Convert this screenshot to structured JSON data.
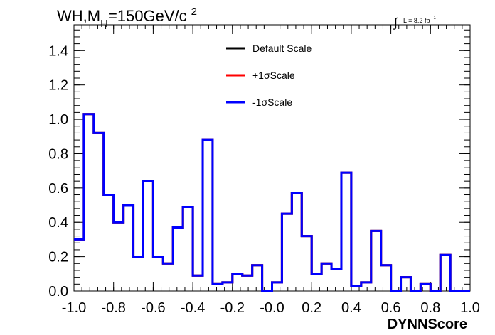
{
  "chart_data": {
    "type": "line",
    "title": {
      "main": "WH,M",
      "sub": "H",
      "rest": "=150GeV/c",
      "sup": "2"
    },
    "lumi": {
      "symbol": "∫",
      "text": "L = 8.2 fb",
      "sup": "-1"
    },
    "xlabel": "DYNNScore",
    "ylabel": "",
    "xlim": [
      -1.0,
      1.0
    ],
    "ylim": [
      0.0,
      1.55
    ],
    "xticks": [
      -1.0,
      -0.8,
      -0.6,
      -0.4,
      -0.2,
      0.0,
      0.2,
      0.4,
      0.6,
      0.8,
      1.0
    ],
    "xtick_labels": [
      "-1.0",
      "-0.8",
      "-0.6",
      "-0.4",
      "-0.2",
      "-0.0",
      "0.2",
      "0.4",
      "0.6",
      "0.8",
      "1.0"
    ],
    "yticks": [
      0.0,
      0.2,
      0.4,
      0.6,
      0.8,
      1.0,
      1.2,
      1.4
    ],
    "ytick_labels": [
      "0.0",
      "0.2",
      "0.4",
      "0.6",
      "0.8",
      "1.0",
      "1.2",
      "1.4"
    ],
    "grid": false,
    "legend_position": "top-center",
    "bin_edges": [
      -1.0,
      -0.95,
      -0.9,
      -0.85,
      -0.8,
      -0.75,
      -0.7,
      -0.65,
      -0.6,
      -0.55,
      -0.5,
      -0.45,
      -0.4,
      -0.35,
      -0.3,
      -0.25,
      -0.2,
      -0.15,
      -0.1,
      -0.05,
      0.0,
      0.05,
      0.1,
      0.15,
      0.2,
      0.25,
      0.3,
      0.35,
      0.4,
      0.45,
      0.5,
      0.55,
      0.6,
      0.65,
      0.7,
      0.75,
      0.8,
      0.85,
      0.9,
      0.95,
      1.0
    ],
    "series": [
      {
        "name": "Default Scale",
        "color": "#000000",
        "values": [
          0.3,
          1.03,
          0.92,
          0.56,
          0.4,
          0.5,
          0.2,
          0.64,
          0.2,
          0.16,
          0.37,
          0.49,
          0.09,
          0.88,
          0.04,
          0.05,
          0.1,
          0.09,
          0.15,
          0.0,
          0.05,
          0.45,
          0.57,
          0.32,
          0.1,
          0.16,
          0.13,
          0.69,
          0.03,
          0.05,
          0.35,
          0.15,
          0.0,
          0.08,
          0.0,
          0.04,
          0.0,
          0.21,
          0.0,
          0.0
        ]
      },
      {
        "name": "+1σScale",
        "color": "#ff0000",
        "values": [
          0.3,
          1.03,
          0.92,
          0.56,
          0.4,
          0.5,
          0.2,
          0.64,
          0.2,
          0.16,
          0.37,
          0.49,
          0.09,
          0.88,
          0.04,
          0.05,
          0.1,
          0.09,
          0.15,
          0.0,
          0.05,
          0.45,
          0.57,
          0.32,
          0.1,
          0.16,
          0.13,
          0.69,
          0.03,
          0.05,
          0.35,
          0.15,
          0.0,
          0.08,
          0.0,
          0.04,
          0.0,
          0.21,
          0.0,
          0.0
        ]
      },
      {
        "name": "-1σScale",
        "color": "#0000ff",
        "values": [
          0.3,
          1.03,
          0.92,
          0.56,
          0.4,
          0.5,
          0.2,
          0.64,
          0.2,
          0.16,
          0.37,
          0.49,
          0.09,
          0.88,
          0.04,
          0.05,
          0.1,
          0.09,
          0.15,
          0.0,
          0.05,
          0.45,
          0.57,
          0.32,
          0.1,
          0.16,
          0.13,
          0.69,
          0.03,
          0.05,
          0.35,
          0.15,
          0.0,
          0.08,
          0.0,
          0.04,
          0.0,
          0.21,
          0.0,
          0.0
        ]
      }
    ]
  }
}
